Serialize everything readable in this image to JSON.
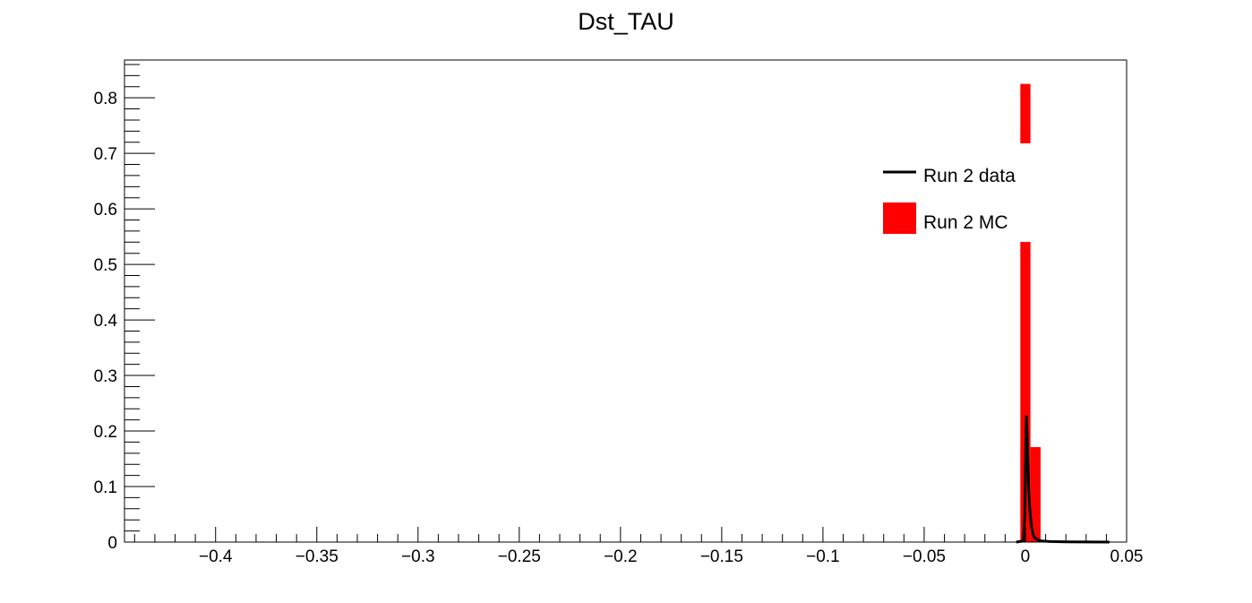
{
  "chart_data": {
    "type": "bar",
    "title": "Dst_TAU",
    "xlabel": "",
    "ylabel": "",
    "xlim": [
      -0.445,
      0.05
    ],
    "ylim": [
      0,
      0.868
    ],
    "grid": false,
    "legend_position": "top-right",
    "x_ticks": [
      -0.4,
      -0.35,
      -0.3,
      -0.25,
      -0.2,
      -0.15,
      -0.1,
      -0.05,
      0,
      0.05
    ],
    "x_tick_labels": [
      "−0.4",
      "−0.35",
      "−0.3",
      "−0.25",
      "−0.2",
      "−0.15",
      "−0.1",
      "−0.05",
      "0",
      "0.05"
    ],
    "y_ticks": [
      0,
      0.1,
      0.2,
      0.3,
      0.4,
      0.5,
      0.6,
      0.7,
      0.8
    ],
    "y_tick_labels": [
      "0",
      "0.1",
      "0.2",
      "0.3",
      "0.4",
      "0.5",
      "0.6",
      "0.7",
      "0.8"
    ],
    "series": [
      {
        "name": "Run 2 MC",
        "kind": "bar",
        "color": "#ff0000",
        "bins": [
          {
            "x0": -0.0025,
            "x1": 0.0025,
            "value": 0.825
          },
          {
            "x0": 0.0025,
            "x1": 0.0075,
            "value": 0.171
          }
        ]
      },
      {
        "name": "Run 2 data",
        "kind": "line",
        "color": "#000000",
        "x": [
          -0.0045,
          -0.001,
          -0.0003,
          0.0001,
          0.0005,
          0.0008,
          0.0012,
          0.0016,
          0.002,
          0.0025,
          0.003,
          0.0036,
          0.0045,
          0.006,
          0.008,
          0.012,
          0.02,
          0.03,
          0.0415
        ],
        "y": [
          0,
          0.002,
          0.05,
          0.15,
          0.228,
          0.2,
          0.15,
          0.1,
          0.07,
          0.045,
          0.028,
          0.016,
          0.008,
          0.004,
          0.002,
          0.001,
          0.0005,
          0.0002,
          0
        ]
      }
    ]
  }
}
